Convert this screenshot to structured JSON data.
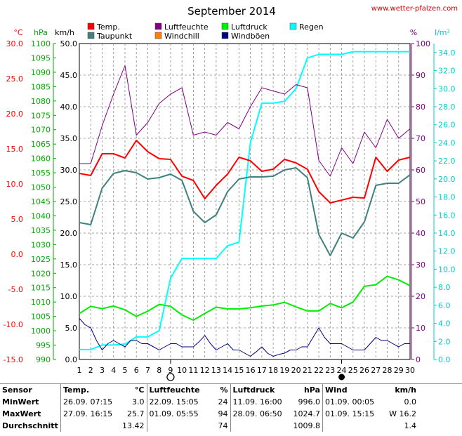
{
  "page": {
    "title": "September 2014",
    "source_link": "www.wetter-pfalzen.com"
  },
  "chart_data": {
    "type": "line",
    "title": "September 2014",
    "x": [
      1,
      2,
      3,
      4,
      5,
      6,
      7,
      8,
      9,
      10,
      11,
      12,
      13,
      14,
      15,
      16,
      17,
      18,
      19,
      20,
      21,
      22,
      23,
      24,
      25,
      26,
      27,
      28,
      29,
      30
    ],
    "x_ticks": [
      "1",
      "2",
      "3",
      "4",
      "5",
      "6",
      "7",
      "8",
      "9",
      "10",
      "11",
      "12",
      "13",
      "14",
      "15",
      "16",
      "17",
      "18",
      "19",
      "20",
      "21",
      "22",
      "23",
      "24",
      "25",
      "26",
      "27",
      "28",
      "29",
      "30"
    ],
    "grid": true,
    "axes": [
      {
        "key": "temp",
        "label": "°C",
        "range": [
          -15,
          30
        ],
        "step": 5,
        "color": "#ff0000",
        "ticks": [
          "30.0",
          "25.0",
          "20.0",
          "15.0",
          "10.0",
          "5.0",
          "0.0",
          "-5.0",
          "-10.0",
          "-15.0"
        ]
      },
      {
        "key": "pressure",
        "label": "hPa",
        "range": [
          990,
          1100
        ],
        "step": 5,
        "color": "#00aa00",
        "ticks": [
          "1100",
          "1095",
          "1090",
          "1085",
          "1080",
          "1075",
          "1070",
          "1065",
          "1060",
          "1055",
          "1050",
          "1045",
          "1040",
          "1035",
          "1030",
          "1025",
          "1020",
          "1015",
          "1010",
          "1005",
          "1000",
          "995",
          "990"
        ]
      },
      {
        "key": "wind",
        "label": "km/h",
        "range": [
          0,
          50
        ],
        "step": 5,
        "color": "#000000",
        "ticks": [
          "50.0",
          "45.0",
          "40.0",
          "35.0",
          "30.0",
          "25.0",
          "20.0",
          "15.0",
          "10.0",
          "5.0",
          "0.0"
        ]
      },
      {
        "key": "humidity",
        "label": "%",
        "range": [
          0,
          100
        ],
        "step": 10,
        "color": "#800080",
        "ticks": [
          "100",
          "90",
          "80",
          "70",
          "60",
          "50",
          "40",
          "30",
          "20",
          "10",
          "0"
        ]
      },
      {
        "key": "rain",
        "label": "l/m²",
        "range": [
          0,
          35
        ],
        "step": 2,
        "color": "#00cccc",
        "ticks": [
          "34.0",
          "32.0",
          "30.0",
          "28.0",
          "26.0",
          "24.0",
          "22.0",
          "20.0",
          "18.0",
          "16.0",
          "14.0",
          "12.0",
          "10.0",
          "8.0",
          "6.0",
          "4.0",
          "2.0",
          "0.0"
        ]
      }
    ],
    "legend": [
      {
        "name": "Temp.",
        "color": "#ff0000"
      },
      {
        "name": "Luftfeuchte",
        "color": "#800080"
      },
      {
        "name": "Luftdruck",
        "color": "#00ee00"
      },
      {
        "name": "Regen",
        "color": "#00ffff"
      },
      {
        "name": "Taupunkt",
        "color": "#408080"
      },
      {
        "name": "Windchill",
        "color": "#ff8000"
      },
      {
        "name": "Windböen",
        "color": "#000080"
      }
    ],
    "series": [
      {
        "name": "Temp.",
        "axis": "temp",
        "color": "#ff0000",
        "width": 2,
        "x": [
          1,
          2,
          3,
          4,
          5,
          6,
          7,
          8,
          9,
          10,
          11,
          12,
          13,
          14,
          15,
          16,
          17,
          18,
          19,
          20,
          21,
          22,
          23,
          24,
          25,
          26,
          27,
          28,
          29,
          30
        ],
        "values": [
          11.5,
          11.2,
          14.3,
          14.3,
          13.7,
          16.2,
          14.6,
          13.6,
          13.5,
          11.1,
          10.5,
          7.9,
          9.8,
          11.4,
          13.8,
          13.3,
          11.8,
          12.1,
          13.5,
          13.0,
          12.1,
          8.9,
          7.3,
          7.7,
          8.1,
          8.0,
          13.8,
          11.8,
          13.4,
          13.8
        ]
      },
      {
        "name": "Taupunkt",
        "axis": "temp",
        "color": "#408080",
        "width": 2,
        "x": [
          1,
          2,
          3,
          4,
          5,
          6,
          7,
          8,
          9,
          10,
          11,
          12,
          13,
          14,
          15,
          16,
          17,
          18,
          19,
          20,
          21,
          22,
          23,
          24,
          25,
          26,
          27,
          28,
          29,
          30
        ],
        "values": [
          4.5,
          4.2,
          9.4,
          11.5,
          11.9,
          11.6,
          10.7,
          10.9,
          11.4,
          10.5,
          6.1,
          4.5,
          5.6,
          8.9,
          10.7,
          11.0,
          11.0,
          11.1,
          12.0,
          12.3,
          10.9,
          2.8,
          -0.2,
          3.0,
          2.3,
          4.6,
          9.8,
          10.1,
          10.1,
          11.3
        ]
      },
      {
        "name": "Luftfeuchte",
        "axis": "humidity",
        "color": "#800080",
        "width": 1,
        "x": [
          1,
          2,
          3,
          4,
          5,
          6,
          7,
          8,
          9,
          10,
          11,
          12,
          13,
          14,
          15,
          16,
          17,
          18,
          19,
          20,
          21,
          22,
          23,
          24,
          25,
          26,
          27,
          28,
          29,
          30
        ],
        "values": [
          62,
          62,
          74,
          84,
          93,
          71,
          75,
          81,
          84,
          86,
          71,
          72,
          71,
          75,
          73,
          80,
          86,
          85,
          84,
          87,
          86,
          63,
          58,
          67,
          62,
          72,
          67,
          76,
          70,
          73
        ]
      },
      {
        "name": "Luftdruck",
        "axis": "pressure",
        "color": "#00ee00",
        "width": 2,
        "x": [
          1,
          2,
          3,
          4,
          5,
          6,
          7,
          8,
          9,
          10,
          11,
          12,
          13,
          14,
          15,
          16,
          17,
          18,
          19,
          20,
          21,
          22,
          23,
          24,
          25,
          26,
          27,
          28,
          29,
          30
        ],
        "values": [
          1006.0,
          1008.5,
          1007.7,
          1008.6,
          1007.3,
          1005.0,
          1006.8,
          1009.2,
          1008.5,
          1005.5,
          1003.7,
          1006.0,
          1008.2,
          1007.6,
          1007.6,
          1008.0,
          1008.6,
          1009.0,
          1009.9,
          1008.3,
          1006.9,
          1006.9,
          1009.5,
          1008.0,
          1010.0,
          1015.5,
          1016.0,
          1019.0,
          1017.7,
          1015.7
        ]
      },
      {
        "name": "Regen",
        "axis": "rain",
        "color": "#00ffff",
        "width": 2,
        "x": [
          1,
          2,
          3,
          4,
          5,
          6,
          7,
          8,
          9,
          10,
          11,
          12,
          13,
          14,
          15,
          16,
          17,
          18,
          19,
          20,
          21,
          22,
          23,
          24,
          25,
          26,
          27,
          28,
          29,
          30
        ],
        "values": [
          1.1,
          1.1,
          1.6,
          1.6,
          1.7,
          2.5,
          2.5,
          3.2,
          9.0,
          11.2,
          11.2,
          11.2,
          11.2,
          12.6,
          13.0,
          24.0,
          28.4,
          28.4,
          28.6,
          30.0,
          33.4,
          33.8,
          33.8,
          33.8,
          34.1,
          34.1,
          34.1,
          34.1,
          34.1,
          34.1
        ]
      },
      {
        "name": "Windböen",
        "axis": "wind",
        "color": "#000080",
        "width": 1,
        "x": [
          1,
          1.5,
          2,
          2.5,
          3,
          3.5,
          4,
          4.5,
          5,
          5.5,
          6,
          6.5,
          7,
          7.5,
          8,
          8.5,
          9,
          9.5,
          10,
          10.5,
          11,
          11.5,
          12,
          12.5,
          13,
          13.5,
          14,
          14.5,
          15,
          15.5,
          16,
          16.5,
          17,
          17.5,
          18,
          18.5,
          19,
          19.5,
          20,
          20.5,
          21,
          21.5,
          22,
          22.5,
          23,
          23.5,
          24,
          24.5,
          25,
          25.5,
          26,
          26.5,
          27,
          27.5,
          28,
          28.5,
          29,
          29.5,
          30
        ],
        "values": [
          6.5,
          5.5,
          5.0,
          3.0,
          1.5,
          2.5,
          3.0,
          2.5,
          2.0,
          3.0,
          3.0,
          2.5,
          2.5,
          2.0,
          1.5,
          2.0,
          2.5,
          2.5,
          2.0,
          2.0,
          2.0,
          2.8,
          3.8,
          2.5,
          1.5,
          2.0,
          2.5,
          1.5,
          1.5,
          1.0,
          0.5,
          1.2,
          2.0,
          1.0,
          0.5,
          0.8,
          1.0,
          1.5,
          1.5,
          2.0,
          2.0,
          3.5,
          5.0,
          3.5,
          2.5,
          2.5,
          2.5,
          2.0,
          1.5,
          1.5,
          1.5,
          2.5,
          3.5,
          3.0,
          3.0,
          2.5,
          2.0,
          2.5,
          2.5
        ]
      }
    ],
    "markers": [
      {
        "x": 9,
        "kind": "new-moon-symbol"
      },
      {
        "x": 24,
        "kind": "full-moon-symbol"
      }
    ]
  },
  "stats": {
    "header": {
      "sensor": "Sensor",
      "temp": "Temp.",
      "temp_unit": "°C",
      "hum": "Luftfeuchte",
      "hum_unit": "%",
      "press": "Luftdruck",
      "press_unit": "hPa",
      "wind": "Wind",
      "wind_unit": "km/h"
    },
    "rows": [
      {
        "label": "MinWert",
        "temp_time": "26.09.  07:15",
        "temp_val": "3.0",
        "hum_time": "22.09.  15:05",
        "hum_val": "24",
        "press_time": "11.09.  16:00",
        "press_val": "996.0",
        "wind_time": "01.09.  00:05",
        "wind_val": "0.0"
      },
      {
        "label": "MaxWert",
        "temp_time": "27.09.  16:15",
        "temp_val": "25.7",
        "hum_time": "01.09.  05:55",
        "hum_val": "94",
        "press_time": "28.09.  06:50",
        "press_val": "1024.7",
        "wind_time": "01.09.  15:15",
        "wind_val": "W 16.2"
      },
      {
        "label": "Durchschnitt",
        "temp_time": "",
        "temp_val": "13.42",
        "hum_time": "",
        "hum_val": "74",
        "press_time": "",
        "press_val": "1009.8",
        "wind_time": "",
        "wind_val": "1.4"
      }
    ]
  }
}
